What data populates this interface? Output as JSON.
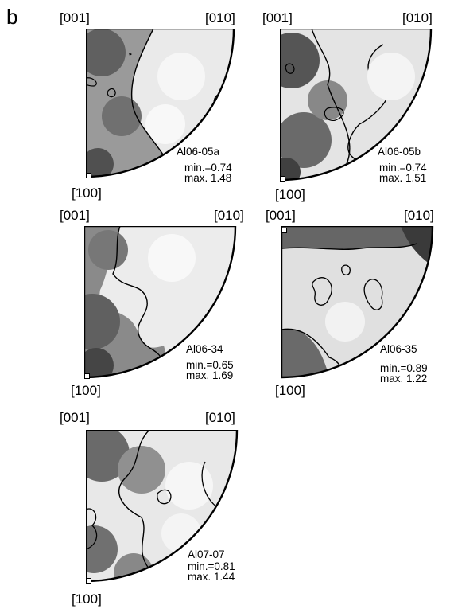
{
  "figure_label": "b",
  "panels": [
    {
      "id": "p1",
      "corner_labels": {
        "top_left": "[001]",
        "top_right": "[010]",
        "bottom": "[100]"
      },
      "sample": "Al06-05a",
      "min": "min.=0.74",
      "max": "max. 1.48"
    },
    {
      "id": "p2",
      "corner_labels": {
        "top_left": "[001]",
        "top_right": "[010]",
        "bottom": "[100]"
      },
      "sample": "Al06-05b",
      "min": "min.=0.74",
      "max": "max. 1.51"
    },
    {
      "id": "p3",
      "corner_labels": {
        "top_left": "[001]",
        "top_right": "[010]",
        "bottom": "[100]"
      },
      "sample": "Al06-34",
      "min": "min.=0.65",
      "max": "max. 1.69"
    },
    {
      "id": "p4",
      "corner_labels": {
        "top_left": "[001]",
        "top_right": "[010]",
        "bottom": "[100]"
      },
      "sample": "Al06-35",
      "min": "min.=0.89",
      "max": "max. 1.22"
    },
    {
      "id": "p5",
      "corner_labels": {
        "top_left": "[001]",
        "top_right": "[010]",
        "bottom": "[100]"
      },
      "sample": "Al07-07",
      "min": "min.=0.81",
      "max": "max. 1.44"
    }
  ]
}
